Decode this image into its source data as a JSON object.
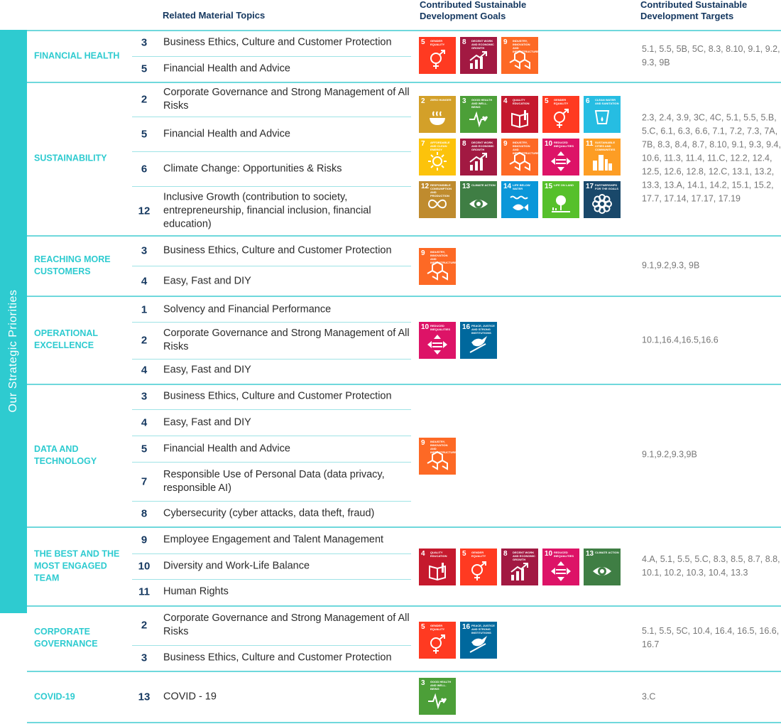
{
  "header": {
    "topics": "Related Material Topics",
    "goals": "Contributed Sustainable Development Goals",
    "targets": "Contributed Sustainable Development Targets"
  },
  "sidebar_label": "Our Strategic Priorities",
  "sdg_colors": {
    "2": "#d3a029",
    "3": "#4c9f38",
    "4": "#c5192d",
    "5": "#ff3a21",
    "6": "#26bde2",
    "7": "#fcc30b",
    "8": "#a21942",
    "9": "#fd6925",
    "10": "#dd1367",
    "11": "#fd9d24",
    "12": "#bf8b2e",
    "13": "#3f7e44",
    "14": "#0a97d9",
    "15": "#56c02b",
    "16": "#00689d",
    "17": "#19486a"
  },
  "sdg_names": {
    "2": "Zero Hunger",
    "3": "Good Health and Well-Being",
    "4": "Quality Education",
    "5": "Gender Equality",
    "6": "Clean Water and Sanitation",
    "7": "Affordable and Clean Energy",
    "8": "Decent Work and Economic Growth",
    "9": "Industry, Innovation and Infrastructure",
    "10": "Reduced Inequalities",
    "11": "Sustainable Cities and Communities",
    "12": "Responsible Consumption and Production",
    "13": "Climate Action",
    "14": "Life Below Water",
    "15": "Life On Land",
    "16": "Peace, Justice and Strong Institutions",
    "17": "Partnerships for the Goals"
  },
  "sdg_icons": {
    "2": "bowl-icon",
    "3": "heartbeat-icon",
    "4": "book-icon",
    "5": "gender-symbol-icon",
    "6": "water-drop-icon",
    "7": "sun-icon",
    "8": "growth-chart-icon",
    "9": "cubes-icon",
    "10": "equality-arrows-icon",
    "11": "city-icon",
    "12": "infinity-icon",
    "13": "eye-globe-icon",
    "14": "fish-icon",
    "15": "tree-icon",
    "16": "dove-icon",
    "17": "flower-ring-icon"
  },
  "rows": [
    {
      "key": "financial-health",
      "priority": "Financial Health",
      "topics": [
        {
          "num": "3",
          "text": "Business Ethics, Culture and Customer Protection"
        },
        {
          "num": "5",
          "text": "Financial Health and Advice"
        }
      ],
      "goals": [
        "5",
        "8",
        "9"
      ],
      "targets": "5.1, 5.5, 5B, 5C, 8.3, 8.10, 9.1, 9.2, 9.3, 9B"
    },
    {
      "key": "sustainability",
      "priority": "Sustainability",
      "topics": [
        {
          "num": "2",
          "text": "Corporate Governance and Strong Management of All Risks"
        },
        {
          "num": "5",
          "text": "Financial Health and Advice"
        },
        {
          "num": "6",
          "text": "Climate Change: Opportunities & Risks"
        },
        {
          "num": "12",
          "text": "Inclusive Growth (contribution to society, entrepreneurship, financial inclusion, financial education)"
        }
      ],
      "goals": [
        "2",
        "3",
        "4",
        "5",
        "6",
        "7",
        "8",
        "9",
        "10",
        "11",
        "12",
        "13",
        "14",
        "15",
        "17"
      ],
      "targets": "2.3, 2.4, 3.9, 3C, 4C, 5.1, 5.5, 5.B, 5.C, 6.1, 6.3, 6.6, 7.1, 7.2, 7.3, 7A, 7B, 8.3, 8.4, 8.7, 8.10, 9.1, 9.3, 9.4, 10.6, 11.3, 11.4, 11.C, 12.2, 12.4, 12.5, 12.6, 12.8, 12.C, 13.1, 13.2, 13.3, 13.A, 14.1, 14.2, 15.1, 15.2, 17.7, 17.14, 17.17, 17.19"
    },
    {
      "key": "reaching-more-customers",
      "priority": "Reaching More Customers",
      "topics": [
        {
          "num": "3",
          "text": "Business Ethics, Culture and Customer Protection"
        },
        {
          "num": "4",
          "text": "Easy, Fast and DIY"
        }
      ],
      "goals": [
        "9"
      ],
      "targets": "9.1,9.2,9.3, 9B"
    },
    {
      "key": "operational-excellence",
      "priority": "Operational Excellence",
      "topics": [
        {
          "num": "1",
          "text": "Solvency and Financial Performance"
        },
        {
          "num": "2",
          "text": "Corporate Governance and Strong Management of All Risks"
        },
        {
          "num": "4",
          "text": "Easy, Fast and DIY"
        }
      ],
      "goals": [
        "10",
        "16"
      ],
      "targets": "10.1,16.4,16.5,16.6"
    },
    {
      "key": "data-and-technology",
      "priority": "Data and Technology",
      "topics": [
        {
          "num": "3",
          "text": "Business Ethics, Culture and Customer Protection"
        },
        {
          "num": "4",
          "text": "Easy, Fast and DIY"
        },
        {
          "num": "5",
          "text": "Financial Health and Advice"
        },
        {
          "num": "7",
          "text": "Responsible Use of Personal Data (data privacy, responsible AI)"
        },
        {
          "num": "8",
          "text": "Cybersecurity (cyber attacks, data theft, fraud)"
        }
      ],
      "goals": [
        "9"
      ],
      "targets": "9.1,9.2,9.3,9B"
    },
    {
      "key": "best-most-engaged-team",
      "priority": "The Best and the Most Engaged Team",
      "topics": [
        {
          "num": "9",
          "text": "Employee Engagement and Talent Management"
        },
        {
          "num": "10",
          "text": "Diversity and Work-Life Balance"
        },
        {
          "num": "11",
          "text": "Human Rights"
        }
      ],
      "goals": [
        "4",
        "5",
        "8",
        "10",
        "13"
      ],
      "targets": "4.A, 5.1, 5.5, 5.C, 8.3, 8.5, 8.7, 8.8, 10.1, 10.2, 10.3, 10.4, 13.3"
    },
    {
      "key": "corporate-governance",
      "priority": "Corporate Governance",
      "topics": [
        {
          "num": "2",
          "text": "Corporate Governance and Strong Management of All Risks"
        },
        {
          "num": "3",
          "text": "Business Ethics, Culture and Customer Protection"
        }
      ],
      "goals": [
        "5",
        "16"
      ],
      "targets": "5.1, 5.5, 5C, 10.4, 16.4, 16.5, 16.6, 16.7"
    },
    {
      "key": "covid-19",
      "priority": "COVID-19",
      "topics": [
        {
          "num": "13",
          "text": "COVID - 19"
        }
      ],
      "goals": [
        "3"
      ],
      "targets": "3.C"
    }
  ]
}
